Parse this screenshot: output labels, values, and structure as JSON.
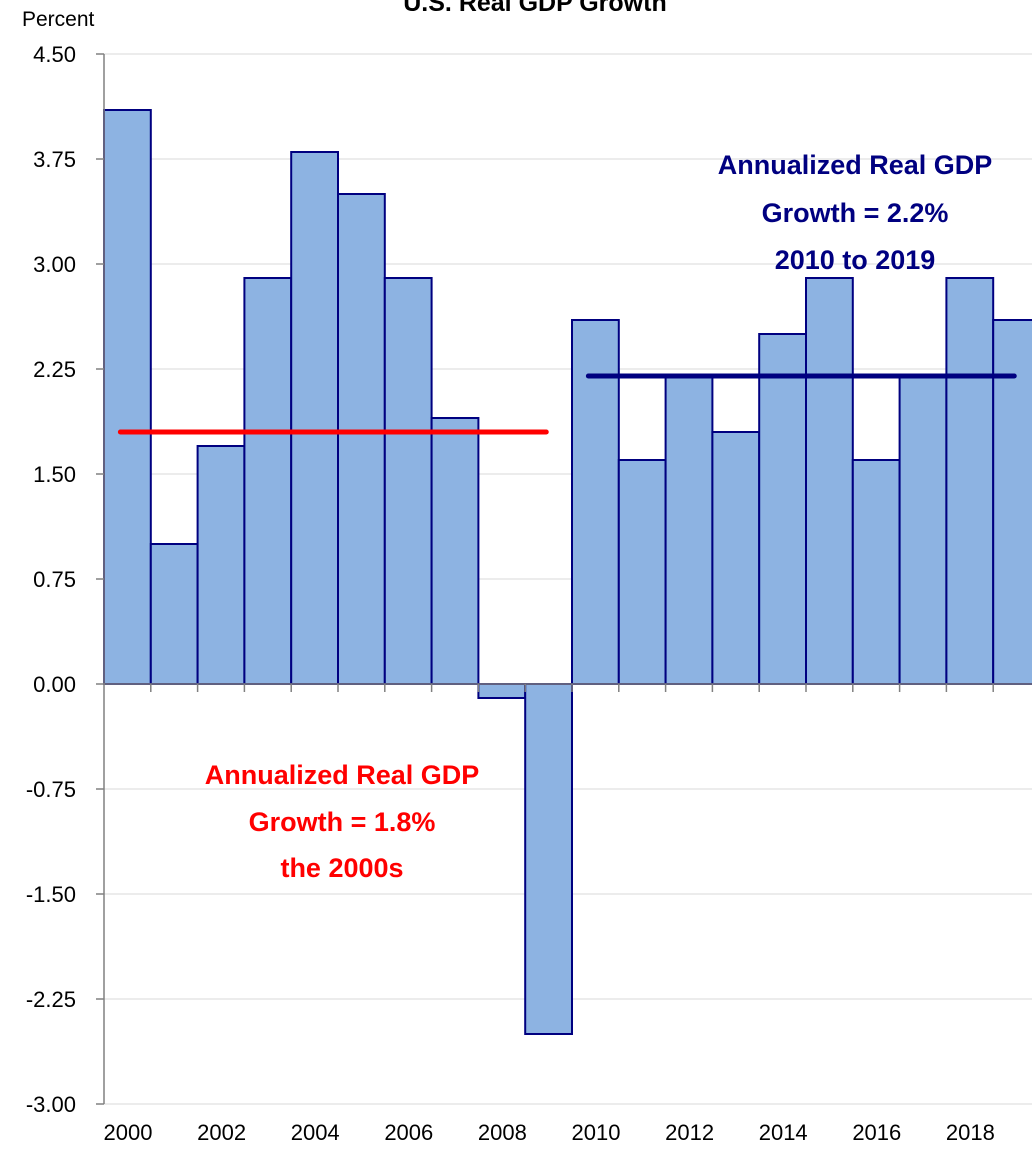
{
  "chart_data": {
    "type": "bar",
    "title": "U.S. Real GDP  Growth",
    "ylabel": "Percent",
    "xlabel": "",
    "categories": [
      "2000",
      "2001",
      "2002",
      "2003",
      "2004",
      "2005",
      "2006",
      "2007",
      "2008",
      "2009",
      "2010",
      "2011",
      "2012",
      "2013",
      "2014",
      "2015",
      "2016",
      "2017",
      "2018",
      "2019"
    ],
    "x_tick_labels": [
      "2000",
      "2002",
      "2004",
      "2006",
      "2008",
      "2010",
      "2012",
      "2014",
      "2016",
      "2018"
    ],
    "values": [
      4.1,
      1.0,
      1.7,
      2.9,
      3.8,
      3.5,
      2.9,
      1.9,
      -0.1,
      -2.5,
      2.6,
      1.6,
      2.2,
      1.8,
      2.5,
      2.9,
      1.6,
      2.2,
      2.9,
      2.6
    ],
    "ylim": [
      -3.0,
      4.5
    ],
    "y_ticks": [
      "4.50",
      "3.75",
      "3.00",
      "2.25",
      "1.50",
      "0.75",
      "0.00",
      "-0.75",
      "-1.50",
      "-2.25",
      "-3.00"
    ],
    "grid": true,
    "averages": [
      {
        "value": 1.8,
        "from": "2000",
        "to": "2009",
        "color": "#ff0000"
      },
      {
        "value": 2.2,
        "from": "2010",
        "to": "2019",
        "color": "#000080"
      }
    ],
    "annotations": {
      "decade_2000s": [
        "Annualized Real GDP",
        "Growth = 1.8%",
        "the 2000s"
      ],
      "decade_2010s": [
        "Annualized Real GDP",
        "Growth = 2.2%",
        "2010 to 2019"
      ]
    },
    "colors": {
      "bar_fill": "#8db3e2",
      "bar_edge": "#000080",
      "avg_2000s": "#ff0000",
      "avg_2010s": "#000080",
      "grid": "#d9d9d9",
      "axis": "#808080"
    }
  }
}
